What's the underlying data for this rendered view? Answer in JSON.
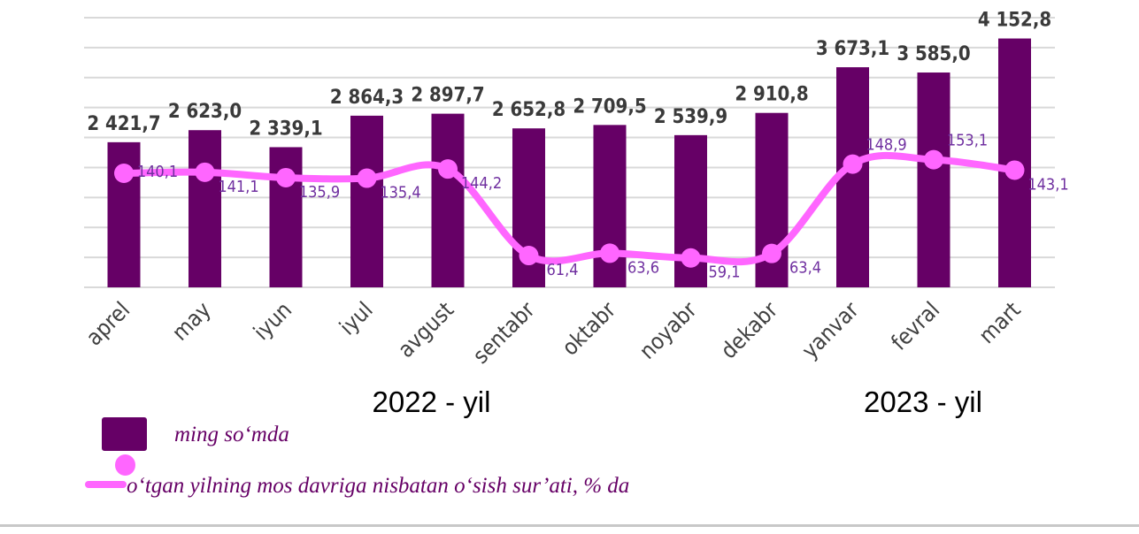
{
  "chart_data": {
    "type": "bar+line",
    "categories": [
      "aprel",
      "may",
      "iyun",
      "iyul",
      "avgust",
      "sentabr",
      "oktabr",
      "noyabr",
      "dekabr",
      "yanvar",
      "fevral",
      "mart"
    ],
    "year_groups": [
      {
        "label": "2022 - yil",
        "months": 9,
        "color": "#f7efdf"
      },
      {
        "label": "2023 - yil",
        "months": 3,
        "color": "#efe2c4"
      }
    ],
    "series": [
      {
        "name": "ming so‘mda",
        "type": "bar",
        "color": "#660066",
        "values": [
          2421.7,
          2623.0,
          2339.1,
          2864.3,
          2897.7,
          2652.8,
          2709.5,
          2539.9,
          2910.8,
          3673.1,
          3585.0,
          4152.8
        ],
        "labels": [
          "2 421,7",
          "2 623,0",
          "2 339,1",
          "2 864,3",
          "2 897,7",
          "2 652,8",
          "2 709,5",
          "2 539,9",
          "2 910,8",
          "3 673,1",
          "3 585,0",
          "4 152,8"
        ]
      },
      {
        "name": "o‘tgan yilning mos davriga nisbatan o‘sish sur’ati, % da",
        "type": "line",
        "color": "#ff66ff",
        "values": [
          140.1,
          141.1,
          135.9,
          135.4,
          144.2,
          61.4,
          63.6,
          59.1,
          63.4,
          148.9,
          153.1,
          143.1
        ],
        "labels": [
          "140,1",
          "141,1",
          "135,9",
          "135,4",
          "144,2",
          "61,4",
          "63,6",
          "59,1",
          "63,4",
          "148,9",
          "153,1",
          "143,1"
        ]
      }
    ],
    "ylim": [
      0,
      4500
    ],
    "grid": true,
    "legend_position": "bottom-left"
  }
}
